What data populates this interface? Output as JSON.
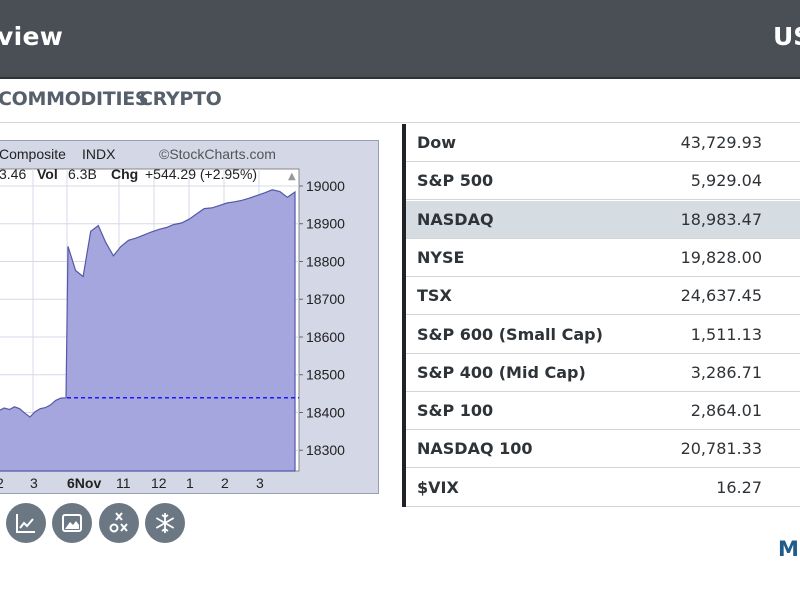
{
  "header": {
    "title": "view",
    "right_label": "US"
  },
  "tabs": [
    {
      "label": "COMMODITIES"
    },
    {
      "label": "CRYPTO"
    }
  ],
  "chart": {
    "title_name": "Composite",
    "title_type": "INDX",
    "watermark": "©StockCharts.com",
    "last_fragment": "3.46",
    "vol_label": "Vol",
    "vol_value": "6.3B",
    "chg_label": "Chg",
    "chg_value": "+544.29 (+2.95%)",
    "arrow": "▲",
    "fill_color": "#a4a6dd",
    "line_color": "#5558a8",
    "ref_line_color": "#1a1aff",
    "chart_data": {
      "type": "area",
      "y_ticks": [
        "19000",
        "18900",
        "18800",
        "18700",
        "18600",
        "18500",
        "18400",
        "18300"
      ],
      "x_ticks": [
        "2",
        "3",
        "6Nov",
        "11",
        "12",
        "1",
        "2",
        "3"
      ],
      "ylim": [
        18245,
        19045
      ],
      "reference_value": 18439,
      "y_values": [
        18405,
        18412,
        18408,
        18415,
        18410,
        18398,
        18388,
        18402,
        18410,
        18413,
        18420,
        18432,
        18438,
        18439,
        18840,
        18776,
        18760,
        18880,
        18895,
        18850,
        18815,
        18840,
        18856,
        18862,
        18870,
        18878,
        18885,
        18890,
        18898,
        18902,
        18912,
        18926,
        18940,
        18942,
        18948,
        18955,
        18958,
        18962,
        18968,
        18975,
        18982,
        18990,
        18985,
        18970,
        18984
      ]
    }
  },
  "tools": [
    {
      "icon": "line-chart-icon"
    },
    {
      "icon": "area-chart-icon"
    },
    {
      "icon": "pnf-chart-icon"
    },
    {
      "icon": "snowflake-icon"
    }
  ],
  "indices": [
    {
      "name": "Dow",
      "value": "43,729.93",
      "selected": false
    },
    {
      "name": "S&P 500",
      "value": "5,929.04",
      "selected": false
    },
    {
      "name": "NASDAQ",
      "value": "18,983.47",
      "selected": true
    },
    {
      "name": "NYSE",
      "value": "19,828.00",
      "selected": false
    },
    {
      "name": "TSX",
      "value": "24,637.45",
      "selected": false
    },
    {
      "name": "S&P 600 (Small Cap)",
      "value": "1,511.13",
      "selected": false
    },
    {
      "name": "S&P 400 (Mid Cap)",
      "value": "3,286.71",
      "selected": false
    },
    {
      "name": "S&P 100",
      "value": "2,864.01",
      "selected": false
    },
    {
      "name": "NASDAQ 100",
      "value": "20,781.33",
      "selected": false
    },
    {
      "name": "$VIX",
      "value": "16.27",
      "selected": false
    }
  ],
  "more_link": "M"
}
